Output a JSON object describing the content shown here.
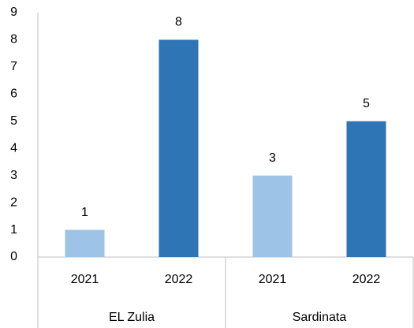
{
  "chart_data": {
    "type": "bar",
    "categories": [
      "2021",
      "2022",
      "2021",
      "2022"
    ],
    "groups": [
      "EL Zulia",
      "Sardinata"
    ],
    "values": [
      1,
      8,
      3,
      5
    ],
    "colors": [
      "#9dc3e6",
      "#2e75b6",
      "#9dc3e6",
      "#2e75b6"
    ],
    "ylim": [
      0,
      9
    ],
    "yticks": [
      0,
      1,
      2,
      3,
      4,
      5,
      6,
      7,
      8,
      9
    ],
    "grid": false
  }
}
